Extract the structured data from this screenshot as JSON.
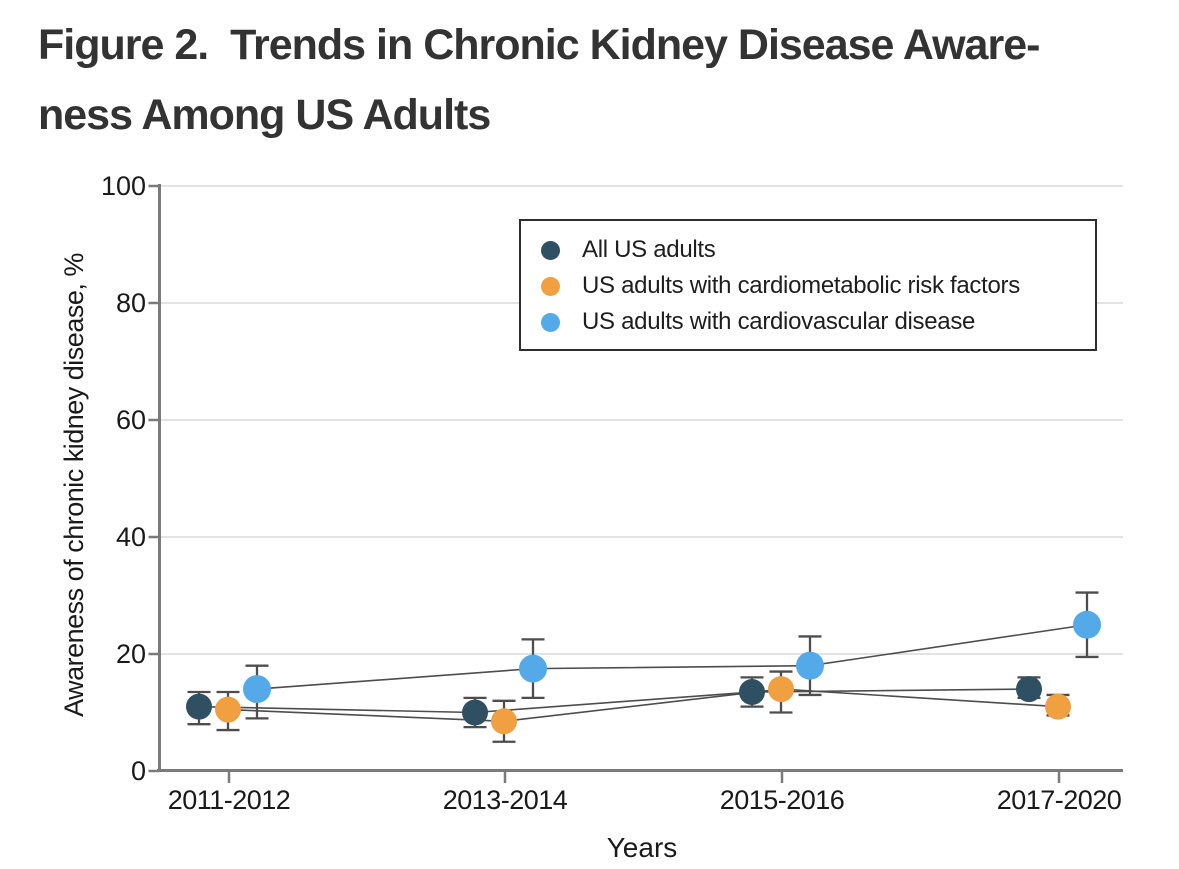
{
  "figure_title": {
    "line1": "Figure 2.  Trends in Chronic Kidney Disease Aware-",
    "line2": "ness Among US Adults"
  },
  "chart_data": {
    "type": "line",
    "title": "Figure 2. Trends in Chronic Kidney Disease Awareness Among US Adults",
    "xlabel": "Years",
    "ylabel": "Awareness of chronic kidney disease, %",
    "ylim": [
      0,
      100
    ],
    "yticks": [
      0,
      20,
      40,
      60,
      80,
      100
    ],
    "grid": true,
    "legend_position": "top-right",
    "error_bars": true,
    "categories": [
      "2011-2012",
      "2013-2014",
      "2015-2016",
      "2017-2020"
    ],
    "series": [
      {
        "name": "All US adults",
        "color": "#2F4F63",
        "values": [
          11,
          10,
          13.5,
          14
        ],
        "ci_low": [
          8,
          7.5,
          11,
          12.5
        ],
        "ci_high": [
          13.5,
          12.5,
          16,
          16
        ]
      },
      {
        "name": "US adults with cardiometabolic risk factors",
        "color": "#F0A041",
        "values": [
          10.5,
          8.5,
          14,
          11
        ],
        "ci_low": [
          7,
          5,
          10,
          9.5
        ],
        "ci_high": [
          13.5,
          12,
          17,
          13
        ]
      },
      {
        "name": "US adults with cardiovascular disease",
        "color": "#54A9E8",
        "values": [
          14,
          17.5,
          18,
          25
        ],
        "ci_low": [
          9,
          12.5,
          13,
          19.5
        ],
        "ci_high": [
          18,
          22.5,
          23,
          30.5
        ]
      }
    ],
    "colors": {
      "axis": "#7A7A7A",
      "grid": "#D9D9D9",
      "error_bar": "#4D4D4D",
      "text": "#1A1A1A",
      "title": "#333333"
    }
  }
}
